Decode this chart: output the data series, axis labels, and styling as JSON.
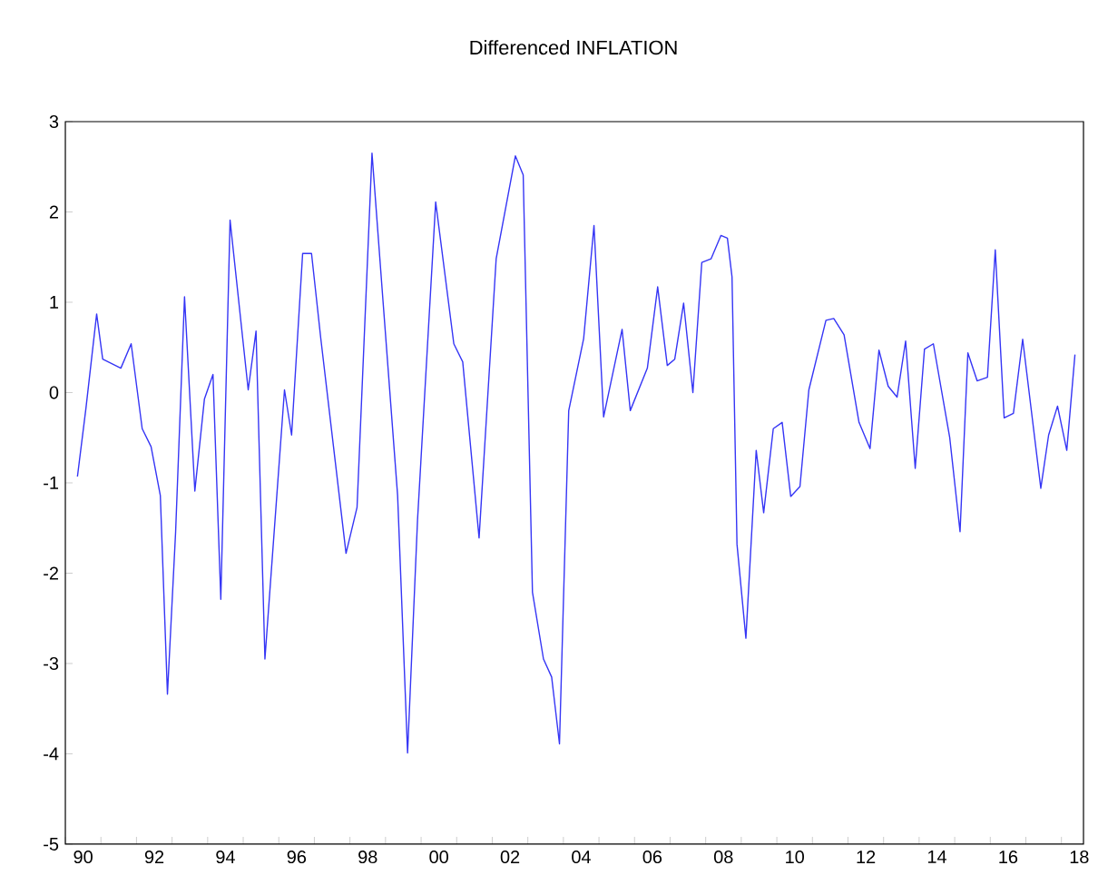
{
  "chart_data": {
    "type": "line",
    "title": "Differenced INFLATION",
    "xlim": [
      1989.5,
      2018.12
    ],
    "ylim": [
      -5,
      3
    ],
    "yticks": [
      -5,
      -4,
      -3,
      -2,
      -1,
      0,
      1,
      2,
      3
    ],
    "xticks": [
      {
        "value": 1989.5,
        "label": null
      },
      {
        "value": 1990.5,
        "label": null
      },
      {
        "value": 1991.5,
        "label": null
      },
      {
        "value": 1992.5,
        "label": null
      },
      {
        "value": 1993.5,
        "label": null
      },
      {
        "value": 1994.5,
        "label": null
      },
      {
        "value": 1995.5,
        "label": null
      },
      {
        "value": 1996.5,
        "label": null
      },
      {
        "value": 1997.5,
        "label": null
      },
      {
        "value": 1998.5,
        "label": null
      },
      {
        "value": 1999.5,
        "label": null
      },
      {
        "value": 2000.5,
        "label": null
      },
      {
        "value": 2001.5,
        "label": null
      },
      {
        "value": 2002.5,
        "label": null
      },
      {
        "value": 2003.5,
        "label": null
      },
      {
        "value": 2004.5,
        "label": null
      },
      {
        "value": 2005.5,
        "label": null
      },
      {
        "value": 2006.5,
        "label": null
      },
      {
        "value": 2007.5,
        "label": null
      },
      {
        "value": 2008.5,
        "label": null
      },
      {
        "value": 2009.5,
        "label": null
      },
      {
        "value": 2010.5,
        "label": null
      },
      {
        "value": 2011.5,
        "label": null
      },
      {
        "value": 2012.5,
        "label": null
      },
      {
        "value": 2013.5,
        "label": null
      },
      {
        "value": 2014.5,
        "label": null
      },
      {
        "value": 2015.5,
        "label": null
      },
      {
        "value": 2016.5,
        "label": null
      },
      {
        "value": 2017.5,
        "label": null
      },
      {
        "value": 1990,
        "label": "90"
      },
      {
        "value": 1992,
        "label": "92"
      },
      {
        "value": 1994,
        "label": "94"
      },
      {
        "value": 1996,
        "label": "96"
      },
      {
        "value": 1998,
        "label": "98"
      },
      {
        "value": 2000,
        "label": "00"
      },
      {
        "value": 2002,
        "label": "02"
      },
      {
        "value": 2004,
        "label": "04"
      },
      {
        "value": 2006,
        "label": "06"
      },
      {
        "value": 2008,
        "label": "08"
      },
      {
        "value": 2010,
        "label": "10"
      },
      {
        "value": 2012,
        "label": "12"
      },
      {
        "value": 2014,
        "label": "14"
      },
      {
        "value": 2016,
        "label": "16"
      },
      {
        "value": 2018,
        "label": "18"
      }
    ],
    "series": [
      {
        "color": "#3535f5",
        "x": [
          1989.84,
          1990.08,
          1990.38,
          1990.55,
          1991.06,
          1991.35,
          1991.66,
          1991.91,
          1992.17,
          1992.37,
          1992.6,
          1992.85,
          1993.14,
          1993.41,
          1993.65,
          1993.87,
          1994.13,
          1994.64,
          1994.86,
          1995.11,
          1995.66,
          1995.86,
          1996.17,
          1996.42,
          1996.68,
          1997.39,
          1997.7,
          1998.12,
          1998.43,
          1998.84,
          1999.12,
          1999.4,
          1999.91,
          2000.42,
          2000.67,
          2001.13,
          2001.61,
          2002.15,
          2002.37,
          2002.63,
          2002.94,
          2003.17,
          2003.39,
          2003.65,
          2004.07,
          2004.36,
          2004.63,
          2005.15,
          2005.38,
          2005.86,
          2006.15,
          2006.42,
          2006.63,
          2006.88,
          2007.14,
          2007.39,
          2007.65,
          2007.93,
          2008.11,
          2008.24,
          2008.38,
          2008.63,
          2008.92,
          2009.13,
          2009.4,
          2009.65,
          2009.89,
          2010.15,
          2010.4,
          2010.88,
          2011.1,
          2011.39,
          2011.81,
          2012.12,
          2012.37,
          2012.63,
          2012.88,
          2013.12,
          2013.39,
          2013.65,
          2013.9,
          2014.36,
          2014.65,
          2014.87,
          2015.13,
          2015.42,
          2015.64,
          2015.89,
          2016.15,
          2016.41,
          2016.92,
          2017.14,
          2017.39,
          2017.65,
          2017.88
        ],
        "values": [
          -0.93,
          -0.17,
          0.87,
          0.37,
          0.27,
          0.54,
          -0.4,
          -0.6,
          -1.14,
          -3.34,
          -1.54,
          1.06,
          -1.09,
          -0.07,
          0.2,
          -2.29,
          1.91,
          0.03,
          0.68,
          -2.95,
          0.03,
          -0.47,
          1.54,
          1.54,
          0.6,
          -1.78,
          -1.27,
          2.65,
          1.01,
          -1.14,
          -3.99,
          -1.41,
          2.11,
          0.54,
          0.34,
          -1.61,
          1.48,
          2.62,
          2.41,
          -2.21,
          -2.95,
          -3.15,
          -3.89,
          -0.2,
          0.6,
          1.85,
          -0.27,
          0.7,
          -0.2,
          0.27,
          1.17,
          0.3,
          0.37,
          0.99,
          0.0,
          1.44,
          1.48,
          1.74,
          1.71,
          1.28,
          -1.68,
          -2.72,
          -0.64,
          -1.33,
          -0.4,
          -0.33,
          -1.15,
          -1.04,
          0.03,
          0.8,
          0.82,
          0.64,
          -0.33,
          -0.62,
          0.47,
          0.07,
          -0.05,
          0.57,
          -0.84,
          0.48,
          0.54,
          -0.5,
          -1.54,
          0.44,
          0.13,
          0.17,
          1.58,
          -0.28,
          -0.23,
          0.59,
          -1.06,
          -0.47,
          -0.15,
          -0.64,
          0.42
        ]
      }
    ]
  }
}
